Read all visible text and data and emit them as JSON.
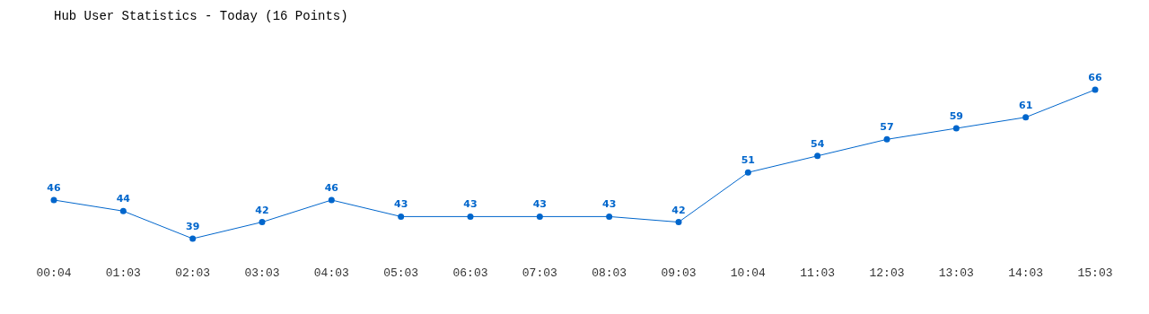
{
  "chart_data": {
    "type": "line",
    "title": "Hub User Statistics - Today (16 Points)",
    "categories": [
      "00:04",
      "01:03",
      "02:03",
      "03:03",
      "04:03",
      "05:03",
      "06:03",
      "07:03",
      "08:03",
      "09:03",
      "10:04",
      "11:03",
      "12:03",
      "13:03",
      "14:03",
      "15:03"
    ],
    "series": [
      {
        "color": "#0066cc",
        "values": [
          46,
          44,
          39,
          42,
          46,
          43,
          43,
          43,
          43,
          42,
          51,
          54,
          57,
          59,
          61,
          66
        ]
      }
    ],
    "marker": "circle",
    "data_labels": true,
    "grid": false
  }
}
